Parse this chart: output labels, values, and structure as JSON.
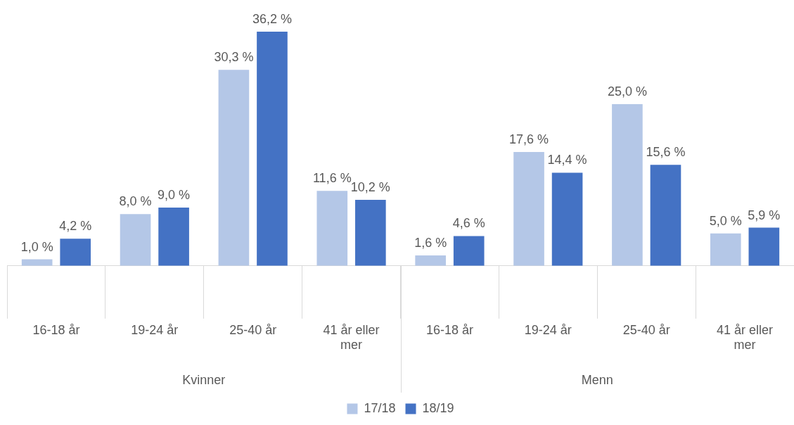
{
  "chart_data": {
    "type": "bar",
    "categories": [
      "16-18 år",
      "19-24 år",
      "25-40 år",
      "41 år eller mer",
      "16-18 år",
      "19-24 år",
      "25-40 år",
      "41 år eller mer"
    ],
    "series": [
      {
        "name": "17/18",
        "color": "#b4c7e7",
        "values": [
          1.0,
          8.0,
          30.3,
          11.6,
          1.6,
          17.6,
          25.0,
          5.0
        ],
        "value_labels": [
          "1,0 %",
          "8,0 %",
          "30,3 %",
          "11,6 %",
          "1,6 %",
          "17,6 %",
          "25,0 %",
          "5,0 %"
        ]
      },
      {
        "name": "18/19",
        "color": "#4472c4",
        "values": [
          4.2,
          9.0,
          36.2,
          10.2,
          4.6,
          14.4,
          15.6,
          5.9
        ],
        "value_labels": [
          "4,2 %",
          "9,0 %",
          "36,2 %",
          "10,2 %",
          "4,6 %",
          "14,4 %",
          "15,6 %",
          "5,9 %"
        ]
      }
    ],
    "annotations": [
      "Kvinner",
      "Menn"
    ],
    "grid": false,
    "legend": "bottom",
    "tick_labels": "x"
  }
}
